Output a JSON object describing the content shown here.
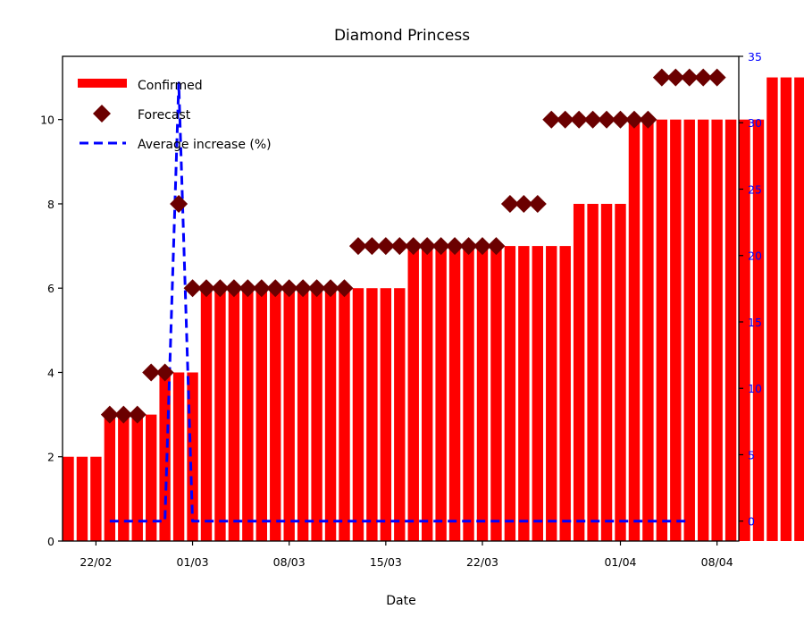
{
  "chart_data": {
    "type": "bar",
    "title": "Diamond Princess",
    "xlabel": "Date",
    "ylabel": "",
    "y2label": "",
    "x_start": "20/02",
    "x_tick_labels": [
      {
        "label": "22/02",
        "day": 2
      },
      {
        "label": "01/03",
        "day": 9
      },
      {
        "label": "08/03",
        "day": 16
      },
      {
        "label": "15/03",
        "day": 23
      },
      {
        "label": "22/03",
        "day": 30
      },
      {
        "label": "01/04",
        "day": 40
      },
      {
        "label": "08/04",
        "day": 47
      }
    ],
    "ylim": [
      0,
      11.5
    ],
    "y_ticks": [
      0,
      2,
      4,
      6,
      8,
      10
    ],
    "y2lim": [
      -1.5,
      35
    ],
    "y2_ticks": [
      0,
      5,
      10,
      15,
      20,
      25,
      30,
      35
    ],
    "legend": {
      "position": "top-left",
      "entries": [
        "Confirmed",
        "Forecast",
        "Average increase (%)"
      ]
    },
    "colors": {
      "confirmed": "#ff0000",
      "forecast": "#6b0000",
      "average": "#0000ff",
      "right_axis": "#0000ff"
    },
    "series": [
      {
        "name": "Confirmed",
        "type": "bar",
        "values": [
          2,
          2,
          2,
          3,
          3,
          3,
          3,
          4,
          4,
          4,
          6,
          6,
          6,
          6,
          6,
          6,
          6,
          6,
          6,
          6,
          6,
          6,
          6,
          6,
          6,
          7,
          7,
          7,
          7,
          7,
          7,
          7,
          7,
          7,
          7,
          7,
          7,
          8,
          8,
          8,
          8,
          10,
          10,
          10,
          10,
          10,
          10,
          10,
          10,
          10,
          10,
          11,
          11,
          11,
          11,
          11
        ]
      },
      {
        "name": "Forecast",
        "type": "scatter",
        "x_day": [
          3,
          4,
          5,
          6,
          7,
          8,
          9,
          10,
          11,
          12,
          13,
          14,
          15,
          16,
          17,
          18,
          19,
          20,
          21,
          22,
          23,
          24,
          25,
          26,
          27,
          28,
          29,
          30,
          31,
          32,
          33,
          34,
          35,
          36,
          37,
          38,
          39,
          40,
          41,
          42,
          43,
          44,
          45,
          46,
          47
        ],
        "values": [
          3,
          3,
          3,
          4,
          4,
          8,
          6,
          6,
          6,
          6,
          6,
          6,
          6,
          6,
          6,
          6,
          6,
          6,
          7,
          7,
          7,
          7,
          7,
          7,
          7,
          7,
          7,
          7,
          7,
          8,
          8,
          8,
          10,
          10,
          10,
          10,
          10,
          10,
          10,
          10,
          11,
          11,
          11,
          11,
          11
        ]
      },
      {
        "name": "Average increase (%)",
        "type": "line",
        "axis": "right",
        "x_day": [
          3,
          4,
          5,
          6,
          7,
          8,
          9,
          10,
          11,
          12,
          13,
          14,
          15,
          16,
          17,
          18,
          19,
          20,
          21,
          22,
          23,
          24,
          25,
          26,
          27,
          28,
          29,
          30,
          31,
          32,
          33,
          34,
          35,
          36,
          37,
          38,
          39,
          40,
          41,
          42,
          43,
          44,
          45
        ],
        "values": [
          0,
          0,
          0,
          0,
          0,
          33,
          0,
          0,
          0,
          0,
          0,
          0,
          0,
          0,
          0,
          0,
          0,
          0,
          0,
          0,
          0,
          0,
          0,
          0,
          0,
          0,
          0,
          0,
          0,
          0,
          0,
          0,
          0,
          0,
          0,
          0,
          0,
          0,
          0,
          0,
          0,
          0,
          0
        ]
      }
    ]
  }
}
